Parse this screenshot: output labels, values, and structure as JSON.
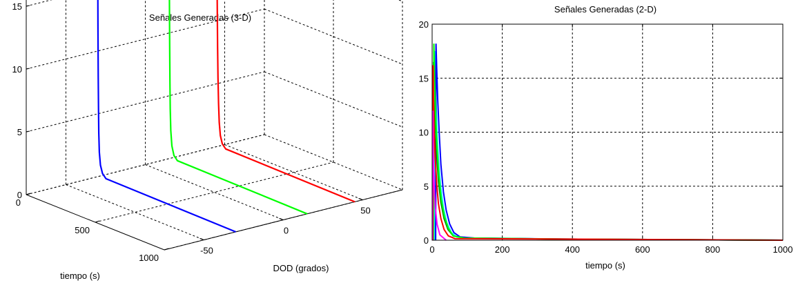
{
  "chart_data": [
    {
      "type": "line",
      "projection": "3d",
      "title": "Señales Generadas (3-D)",
      "xlabel": "tiempo (s)",
      "ylabel": "DOD (grados)",
      "zlabel": "",
      "xlim": [
        0,
        1000
      ],
      "ylim": [
        -75,
        75
      ],
      "zlim": [
        0,
        20
      ],
      "x_ticks": [
        "0",
        "500",
        "1000"
      ],
      "y_ticks": [
        "-50",
        "0",
        "50"
      ],
      "z_ticks": [
        "0",
        "5",
        "10",
        "15"
      ],
      "grid": true,
      "series": [
        {
          "color": "#0000ff",
          "dod": -30,
          "points": [
            [
              0,
              18.2
            ],
            [
              2,
              12
            ],
            [
              4,
              8
            ],
            [
              6,
              5.5
            ],
            [
              8,
              3.5
            ],
            [
              12,
              2
            ],
            [
              20,
              1
            ],
            [
              35,
              0.4
            ],
            [
              60,
              0.1
            ],
            [
              1000,
              0
            ]
          ]
        },
        {
          "color": "#00ff00",
          "dod": 15,
          "points": [
            [
              0,
              18.2
            ],
            [
              2,
              13
            ],
            [
              4,
              9
            ],
            [
              6,
              6
            ],
            [
              8,
              4
            ],
            [
              12,
              2.3
            ],
            [
              20,
              1.1
            ],
            [
              35,
              0.4
            ],
            [
              60,
              0.1
            ],
            [
              1000,
              0
            ]
          ]
        },
        {
          "color": "#ff0000",
          "dod": 45,
          "points": [
            [
              0,
              18.2
            ],
            [
              3,
              12
            ],
            [
              6,
              8
            ],
            [
              9,
              5.5
            ],
            [
              13,
              3.5
            ],
            [
              18,
              2
            ],
            [
              26,
              1
            ],
            [
              40,
              0.4
            ],
            [
              65,
              0.1
            ],
            [
              1000,
              0
            ]
          ]
        }
      ]
    },
    {
      "type": "line",
      "title": "Señales Generadas (2-D)",
      "xlabel": "tiempo (s)",
      "ylabel": "",
      "xlim": [
        0,
        1000
      ],
      "ylim": [
        0,
        20
      ],
      "x_ticks": [
        0,
        200,
        400,
        600,
        800,
        1000
      ],
      "y_ticks": [
        0,
        5,
        10,
        15,
        20
      ],
      "grid": true,
      "series": [
        {
          "color": "#00ffff",
          "x": [
            6,
            7,
            9,
            11,
            14,
            18,
            24,
            32,
            42,
            55,
            70,
            100,
            370,
            1000
          ],
          "y": [
            0,
            17.5,
            16,
            13,
            10,
            7.5,
            5,
            3,
            1.6,
            0.7,
            0.3,
            0.2,
            0.1,
            0
          ]
        },
        {
          "color": "#0000ff",
          "x": [
            10,
            11,
            13,
            16,
            20,
            25,
            32,
            40,
            50,
            62,
            80,
            120,
            370,
            1000
          ],
          "y": [
            0,
            18.2,
            16,
            13,
            10,
            7,
            4.5,
            2.8,
            1.5,
            0.7,
            0.3,
            0.2,
            0.1,
            0
          ]
        },
        {
          "color": "#008000",
          "x": [
            3,
            4,
            6,
            9,
            13,
            18,
            25,
            34,
            45,
            60,
            90,
            370,
            1000
          ],
          "y": [
            0,
            16.5,
            14,
            11,
            8,
            5.5,
            3.5,
            2,
            1,
            0.4,
            0.2,
            0.1,
            0
          ]
        },
        {
          "color": "#00ff00",
          "x": [
            4,
            5,
            7,
            10,
            14,
            19,
            26,
            35,
            46,
            60,
            90,
            370,
            1000
          ],
          "y": [
            0,
            18.2,
            15,
            11.5,
            8.5,
            6,
            3.8,
            2.2,
            1.1,
            0.4,
            0.2,
            0.1,
            0
          ]
        },
        {
          "color": "#ff0000",
          "x": [
            2,
            3,
            4,
            6,
            9,
            13,
            18,
            25,
            34,
            46,
            65,
            370,
            1000
          ],
          "y": [
            0,
            16.2,
            13,
            10,
            7.5,
            5.2,
            3.4,
            2,
            1,
            0.4,
            0.15,
            0.1,
            0
          ]
        },
        {
          "color": "#ff00ff",
          "x": [
            1,
            2,
            3,
            4,
            6,
            9,
            14,
            22,
            40
          ],
          "y": [
            0,
            12,
            9,
            7,
            5,
            3,
            1.5,
            0.5,
            0
          ]
        }
      ]
    }
  ]
}
